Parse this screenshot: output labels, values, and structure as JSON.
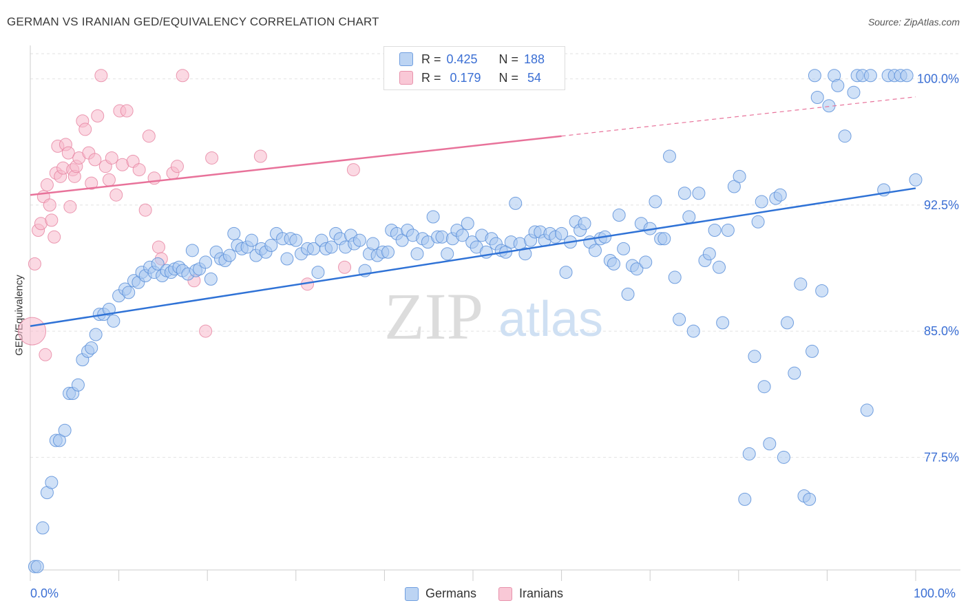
{
  "header": {
    "title": "GERMAN VS IRANIAN GED/EQUIVALENCY CORRELATION CHART",
    "source": "Source: ZipAtlas.com"
  },
  "watermark": {
    "zip": "ZIP",
    "atlas": "atlas"
  },
  "legend_top": {
    "rows": [
      {
        "r_label": "R =",
        "r_value": "0.425",
        "n_label": "N =",
        "n_value": "188"
      },
      {
        "r_label": "R =",
        "r_value": " 0.179",
        "n_label": "N =",
        "n_value": " 54"
      }
    ]
  },
  "bottom_legend": {
    "german": "Germans",
    "iranian": "Iranians"
  },
  "colors": {
    "german_fill": "#a9c8f0",
    "german_stroke": "#5b8fd9",
    "german_line": "#2f72d6",
    "iranian_fill": "#f7b9cc",
    "iranian_stroke": "#e6819f",
    "iranian_line": "#e8729a",
    "tick_text": "#3b6fd4",
    "grid": "#e2e2e2"
  },
  "chart_data": {
    "type": "scatter",
    "title": "GERMAN VS IRANIAN GED/EQUIVALENCY CORRELATION CHART",
    "xlabel": "",
    "ylabel": "GED/Equivalency",
    "xlim": [
      0,
      100
    ],
    "ylim": [
      70.8,
      101.5
    ],
    "x_tick_labels": [
      "0.0%",
      "100.0%"
    ],
    "y_ticks": [
      77.5,
      85.0,
      92.5,
      100.0
    ],
    "y_tick_labels": [
      "77.5%",
      "85.0%",
      "92.5%",
      "100.0%"
    ],
    "grid": true,
    "legend_position": "top-center",
    "series": [
      {
        "name": "Germans",
        "R": 0.425,
        "N": 188,
        "trend": {
          "x": [
            0,
            100
          ],
          "y": [
            85.3,
            93.5
          ]
        },
        "points": [
          [
            0.5,
            71.0
          ],
          [
            0.8,
            71.0
          ],
          [
            1.4,
            73.3
          ],
          [
            1.9,
            75.4
          ],
          [
            2.4,
            76.0
          ],
          [
            2.9,
            78.5
          ],
          [
            3.3,
            78.5
          ],
          [
            3.9,
            79.1
          ],
          [
            4.4,
            81.3
          ],
          [
            4.8,
            81.3
          ],
          [
            5.4,
            81.8
          ],
          [
            5.9,
            83.3
          ],
          [
            6.5,
            83.8
          ],
          [
            6.9,
            84.0
          ],
          [
            7.4,
            84.8
          ],
          [
            7.8,
            86.0
          ],
          [
            8.3,
            86.0
          ],
          [
            8.9,
            86.3
          ],
          [
            9.4,
            85.6
          ],
          [
            10.0,
            87.1
          ],
          [
            10.7,
            87.5
          ],
          [
            11.1,
            87.3
          ],
          [
            11.7,
            88.0
          ],
          [
            12.2,
            87.9
          ],
          [
            12.6,
            88.5
          ],
          [
            13.0,
            88.3
          ],
          [
            13.5,
            88.8
          ],
          [
            14.0,
            88.5
          ],
          [
            14.4,
            89.0
          ],
          [
            14.9,
            88.3
          ],
          [
            15.4,
            88.6
          ],
          [
            15.9,
            88.5
          ],
          [
            16.3,
            88.7
          ],
          [
            16.8,
            88.8
          ],
          [
            17.2,
            88.6
          ],
          [
            17.8,
            88.4
          ],
          [
            18.3,
            89.8
          ],
          [
            18.7,
            88.6
          ],
          [
            19.1,
            88.7
          ],
          [
            19.8,
            89.1
          ],
          [
            20.4,
            88.1
          ],
          [
            21.0,
            89.7
          ],
          [
            21.5,
            89.3
          ],
          [
            22.0,
            89.2
          ],
          [
            22.5,
            89.5
          ],
          [
            23.0,
            90.8
          ],
          [
            23.4,
            90.1
          ],
          [
            23.9,
            89.9
          ],
          [
            24.5,
            90.0
          ],
          [
            25.0,
            90.4
          ],
          [
            25.5,
            89.5
          ],
          [
            26.1,
            89.9
          ],
          [
            26.6,
            89.7
          ],
          [
            27.2,
            90.1
          ],
          [
            27.8,
            90.8
          ],
          [
            28.5,
            90.5
          ],
          [
            29.0,
            89.3
          ],
          [
            29.4,
            90.5
          ],
          [
            30.0,
            90.4
          ],
          [
            30.6,
            89.6
          ],
          [
            31.3,
            89.9
          ],
          [
            32.0,
            89.9
          ],
          [
            32.5,
            88.5
          ],
          [
            32.9,
            90.4
          ],
          [
            33.4,
            89.9
          ],
          [
            34.0,
            90.0
          ],
          [
            34.5,
            90.8
          ],
          [
            35.0,
            90.5
          ],
          [
            35.6,
            90.0
          ],
          [
            36.2,
            90.7
          ],
          [
            36.6,
            90.2
          ],
          [
            37.2,
            90.4
          ],
          [
            37.8,
            88.6
          ],
          [
            38.3,
            89.6
          ],
          [
            38.7,
            90.2
          ],
          [
            39.2,
            89.5
          ],
          [
            39.8,
            89.7
          ],
          [
            40.4,
            89.7
          ],
          [
            40.8,
            91.0
          ],
          [
            41.4,
            90.8
          ],
          [
            42.0,
            90.4
          ],
          [
            42.6,
            91.0
          ],
          [
            43.2,
            90.7
          ],
          [
            43.7,
            89.6
          ],
          [
            44.3,
            90.5
          ],
          [
            44.9,
            90.3
          ],
          [
            45.5,
            91.8
          ],
          [
            46.0,
            90.6
          ],
          [
            46.5,
            90.6
          ],
          [
            47.1,
            89.6
          ],
          [
            47.7,
            90.5
          ],
          [
            48.2,
            91.0
          ],
          [
            48.8,
            90.7
          ],
          [
            49.4,
            91.4
          ],
          [
            49.9,
            90.3
          ],
          [
            50.4,
            90.0
          ],
          [
            51.0,
            90.7
          ],
          [
            51.5,
            89.7
          ],
          [
            52.1,
            90.5
          ],
          [
            52.6,
            90.2
          ],
          [
            53.2,
            89.8
          ],
          [
            53.7,
            89.7
          ],
          [
            54.3,
            90.3
          ],
          [
            54.8,
            92.6
          ],
          [
            55.3,
            90.2
          ],
          [
            55.9,
            89.6
          ],
          [
            56.5,
            90.4
          ],
          [
            57.0,
            90.9
          ],
          [
            57.6,
            90.9
          ],
          [
            58.1,
            90.4
          ],
          [
            58.7,
            90.8
          ],
          [
            59.3,
            90.6
          ],
          [
            60.0,
            90.8
          ],
          [
            60.5,
            88.5
          ],
          [
            61.0,
            90.3
          ],
          [
            61.6,
            91.5
          ],
          [
            62.1,
            91.0
          ],
          [
            62.6,
            91.4
          ],
          [
            63.2,
            90.3
          ],
          [
            63.8,
            89.8
          ],
          [
            64.4,
            90.5
          ],
          [
            64.9,
            90.6
          ],
          [
            65.5,
            89.2
          ],
          [
            65.9,
            89.0
          ],
          [
            66.5,
            91.9
          ],
          [
            67.0,
            89.9
          ],
          [
            67.5,
            87.2
          ],
          [
            68.0,
            88.9
          ],
          [
            68.5,
            88.7
          ],
          [
            69.0,
            91.4
          ],
          [
            69.5,
            89.1
          ],
          [
            70.0,
            91.1
          ],
          [
            70.6,
            92.7
          ],
          [
            71.2,
            90.5
          ],
          [
            71.6,
            90.5
          ],
          [
            72.2,
            95.4
          ],
          [
            72.8,
            88.2
          ],
          [
            73.3,
            85.7
          ],
          [
            73.9,
            93.2
          ],
          [
            74.4,
            91.8
          ],
          [
            74.9,
            85.0
          ],
          [
            75.5,
            93.2
          ],
          [
            76.2,
            89.2
          ],
          [
            76.7,
            89.6
          ],
          [
            77.3,
            91.0
          ],
          [
            77.8,
            88.8
          ],
          [
            78.2,
            85.5
          ],
          [
            78.8,
            91.0
          ],
          [
            79.5,
            93.6
          ],
          [
            80.1,
            94.2
          ],
          [
            80.7,
            75.0
          ],
          [
            81.2,
            77.7
          ],
          [
            81.8,
            83.5
          ],
          [
            82.2,
            91.5
          ],
          [
            82.6,
            92.7
          ],
          [
            82.9,
            81.7
          ],
          [
            83.5,
            78.3
          ],
          [
            84.2,
            92.9
          ],
          [
            84.7,
            93.1
          ],
          [
            85.1,
            77.5
          ],
          [
            85.5,
            85.5
          ],
          [
            86.3,
            82.5
          ],
          [
            87.0,
            87.8
          ],
          [
            87.4,
            75.2
          ],
          [
            88.0,
            75.0
          ],
          [
            88.3,
            83.8
          ],
          [
            88.6,
            100.2
          ],
          [
            88.9,
            98.9
          ],
          [
            89.4,
            87.4
          ],
          [
            90.2,
            98.4
          ],
          [
            90.8,
            100.2
          ],
          [
            91.2,
            99.6
          ],
          [
            92.0,
            96.6
          ],
          [
            93.0,
            99.2
          ],
          [
            93.4,
            100.2
          ],
          [
            94.0,
            100.2
          ],
          [
            94.5,
            80.3
          ],
          [
            94.9,
            100.2
          ],
          [
            96.4,
            93.4
          ],
          [
            96.9,
            100.2
          ],
          [
            97.6,
            100.2
          ],
          [
            98.3,
            100.2
          ],
          [
            99.0,
            100.2
          ],
          [
            100.0,
            94.0
          ]
        ]
      },
      {
        "name": "Iranians",
        "R": 0.179,
        "N": 54,
        "trend": {
          "x": [
            0,
            60
          ],
          "y": [
            93.1,
            96.6
          ]
        },
        "points": [
          [
            0.2,
            85.0
          ],
          [
            0.5,
            89.0
          ],
          [
            0.9,
            91.0
          ],
          [
            1.2,
            91.4
          ],
          [
            1.5,
            93.0
          ],
          [
            1.7,
            83.6
          ],
          [
            1.9,
            93.7
          ],
          [
            2.2,
            92.5
          ],
          [
            2.4,
            91.6
          ],
          [
            2.7,
            90.6
          ],
          [
            2.9,
            94.4
          ],
          [
            3.1,
            96.0
          ],
          [
            3.4,
            94.2
          ],
          [
            3.7,
            94.7
          ],
          [
            4.0,
            96.1
          ],
          [
            4.3,
            95.6
          ],
          [
            4.5,
            92.4
          ],
          [
            4.8,
            94.6
          ],
          [
            5.0,
            94.2
          ],
          [
            5.2,
            94.8
          ],
          [
            5.5,
            95.3
          ],
          [
            5.9,
            97.5
          ],
          [
            6.2,
            97.0
          ],
          [
            6.6,
            95.6
          ],
          [
            6.9,
            93.8
          ],
          [
            7.3,
            95.2
          ],
          [
            7.6,
            97.8
          ],
          [
            8.0,
            100.2
          ],
          [
            8.5,
            94.8
          ],
          [
            8.9,
            94.0
          ],
          [
            9.2,
            95.3
          ],
          [
            9.7,
            93.1
          ],
          [
            10.1,
            98.1
          ],
          [
            10.4,
            94.9
          ],
          [
            10.9,
            98.1
          ],
          [
            11.6,
            95.1
          ],
          [
            12.3,
            94.6
          ],
          [
            13.0,
            92.2
          ],
          [
            13.4,
            96.6
          ],
          [
            14.0,
            94.1
          ],
          [
            14.5,
            90.0
          ],
          [
            14.8,
            89.3
          ],
          [
            16.1,
            94.4
          ],
          [
            16.6,
            94.8
          ],
          [
            17.2,
            100.2
          ],
          [
            18.5,
            88.0
          ],
          [
            19.8,
            85.0
          ],
          [
            20.5,
            95.3
          ],
          [
            26.0,
            95.4
          ],
          [
            31.3,
            87.8
          ],
          [
            35.5,
            88.8
          ],
          [
            36.5,
            94.6
          ],
          [
            43.0,
            100.2
          ],
          [
            55.5,
            100.2
          ]
        ]
      }
    ]
  }
}
